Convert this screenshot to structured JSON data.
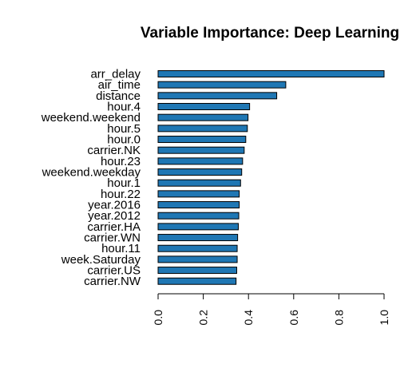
{
  "chart_data": {
    "type": "bar",
    "orientation": "horizontal",
    "title": "Variable Importance: Deep Learning",
    "xlabel": "",
    "ylabel": "",
    "categories": [
      "arr_delay",
      "air_time",
      "distance",
      "hour.4",
      "weekend.weekend",
      "hour.5",
      "hour.0",
      "carrier.NK",
      "hour.23",
      "weekend.weekday",
      "hour.1",
      "hour.22",
      "year.2016",
      "year.2012",
      "carrier.HA",
      "carrier.WN",
      "hour.11",
      "week.Saturday",
      "carrier.US",
      "carrier.NW"
    ],
    "values": [
      1.0,
      0.565,
      0.525,
      0.405,
      0.398,
      0.395,
      0.388,
      0.381,
      0.374,
      0.37,
      0.365,
      0.359,
      0.359,
      0.357,
      0.355,
      0.352,
      0.35,
      0.35,
      0.348,
      0.345
    ],
    "xlim": [
      0,
      1
    ],
    "xticks": [
      "0.0",
      "0.2",
      "0.4",
      "0.6",
      "0.8",
      "1.0"
    ],
    "tick_values": [
      0,
      0.2,
      0.4,
      0.6,
      0.8,
      1.0
    ],
    "bar_color": "#1f77b4",
    "grid": false,
    "legend": "none"
  }
}
